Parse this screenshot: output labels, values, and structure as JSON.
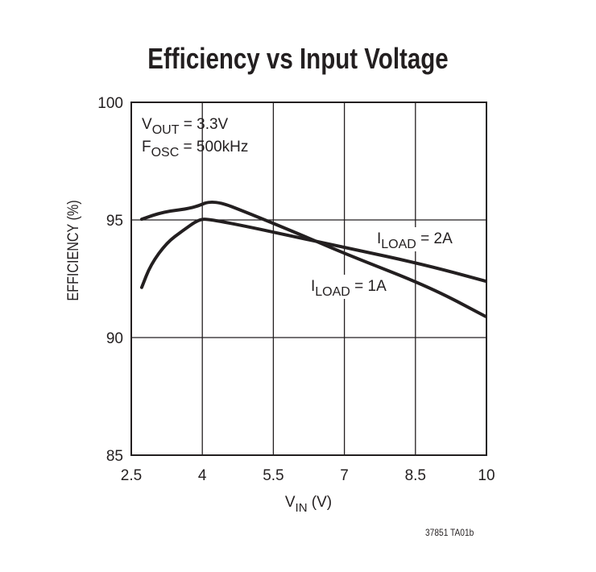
{
  "chart_data": {
    "type": "line",
    "title": "Efficiency vs Input Voltage",
    "xlabel": "VIN (V)",
    "xlabel_main": "V",
    "xlabel_sub": "IN",
    "xlabel_unit": " (V)",
    "ylabel": "EFFICIENCY (%)",
    "xlim": [
      2.5,
      10
    ],
    "ylim": [
      85,
      100
    ],
    "xticks": [
      "2.5",
      "4",
      "5.5",
      "7",
      "8.5",
      "10"
    ],
    "yticks": [
      "85",
      "90",
      "95",
      "100"
    ],
    "grid": true,
    "annotations": [
      {
        "main": "V",
        "sub": "OUT",
        "rest": " = 3.3V"
      },
      {
        "main": "F",
        "sub": "OSC",
        "rest": " = 500kHz"
      }
    ],
    "series": [
      {
        "name": "ILOAD = 1A",
        "label_main": "I",
        "label_sub": "LOAD",
        "label_rest": " = 1A",
        "x": [
          2.72,
          3.18,
          3.81,
          4.23,
          5.0,
          6.14,
          7.09,
          8.79,
          9.98
        ],
        "y": [
          95.03,
          95.35,
          95.5,
          95.87,
          95.27,
          94.32,
          93.5,
          92.16,
          90.9
        ]
      },
      {
        "name": "ILOAD = 2A",
        "label_main": "I",
        "label_sub": "LOAD",
        "label_rest": " = 2A",
        "x": [
          2.72,
          2.91,
          3.25,
          3.59,
          3.93,
          4.15,
          5.0,
          6.14,
          7.09,
          8.69,
          9.98
        ],
        "y": [
          92.13,
          93.1,
          94.04,
          94.55,
          95.03,
          95.03,
          94.7,
          94.2,
          93.8,
          93.1,
          92.4
        ]
      }
    ]
  },
  "footnote": "37851 TA01b"
}
